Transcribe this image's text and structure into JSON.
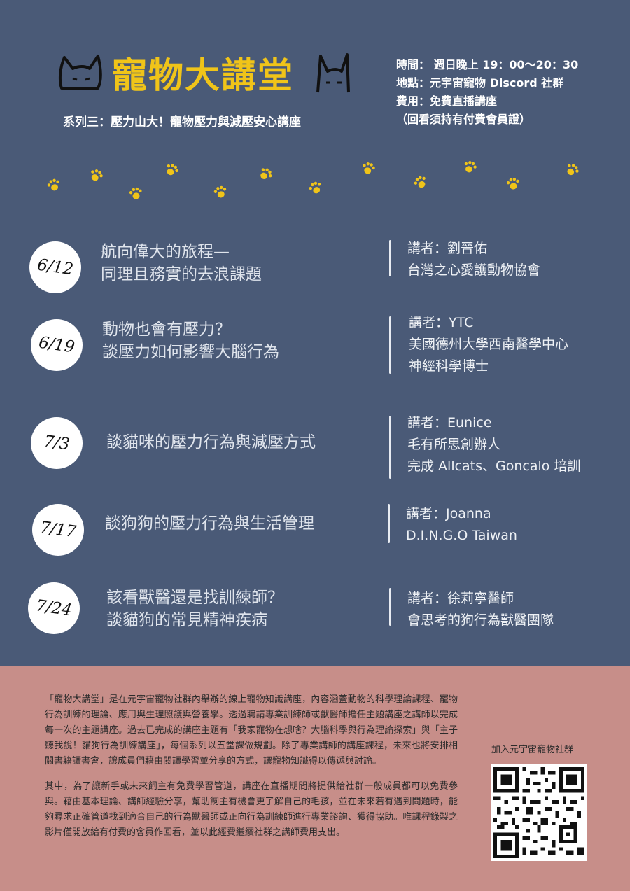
{
  "header": {
    "title": "寵物大講堂",
    "subtitle": "系列三：壓力山大！寵物壓力與減壓安心講座"
  },
  "info": {
    "time": "時間： 週日晚上 19：00～20：30",
    "place": "地點：元宇宙寵物 Discord 社群",
    "fee": "費用：免費直播講座",
    "note": "（回看須持有付費會員證）"
  },
  "sessions": [
    {
      "date": "6/12",
      "topic_lines": [
        "航向偉大的旅程—",
        "同理且務實的去浪課題"
      ],
      "speaker_lines": [
        "講者：劉晉佑",
        "台灣之心愛護動物協會"
      ]
    },
    {
      "date": "6/19",
      "topic_lines": [
        "動物也會有壓力？",
        "談壓力如何影響大腦行為"
      ],
      "speaker_lines": [
        "講者：YTC",
        "美國德州大學西南醫學中心",
        "神經科學博士"
      ]
    },
    {
      "date": "7/3",
      "topic_lines": [
        "談貓咪的壓力行為與減壓方式"
      ],
      "speaker_lines": [
        "講者：Eunice",
        "毛有所思創辦人",
        "完成 Allcats、Goncalo 培訓"
      ]
    },
    {
      "date": "7/17",
      "topic_lines": [
        "談狗狗的壓力行為與生活管理"
      ],
      "speaker_lines": [
        "講者：Joanna",
        "D.I.N.G.O Taiwan"
      ]
    },
    {
      "date": "7/24",
      "topic_lines": [
        "該看獸醫還是找訓練師？",
        "談貓狗的常見精神疾病"
      ],
      "speaker_lines": [
        "講者：徐莉寧醫師",
        "會思考的狗行為獸醫團隊"
      ]
    }
  ],
  "description": {
    "paragraph1": "「寵物大講堂」是在元宇宙寵物社群內舉辦的線上寵物知識講座，內容涵蓋動物的科學理論課程、寵物行為訓練的理論、應用與生理照護與營養學。透過聘請專業訓練師或獸醫師擔任主題講座之講師以完成每一次的主題講座。過去已完成的講座主題有「我家寵物在想啥？大腦科學與行為理論探索」與「主子聽我說！貓狗行為訓練講座」，每個系列以五堂課做規劃。除了專業講師的講座課程，未來也將安排相關書籍讀書會，讓成員們藉由閱讀學習並分享的方式，讓寵物知識得以傳遞與討論。",
    "paragraph2": "其中，為了讓新手或未來飼主有免費學習管道，講座在直播期間將提供給社群一般成員都可以免費參與。藉由基本理論、講師經驗分享，幫助飼主有機會更了解自己的毛孩，並在未來若有遇到問題時，能夠尋求正確管道找到適合自己的行為獸醫師或正向行為訓練師進行專業諮詢、獲得協助。唯課程錄製之影片僅開放給有付費的會員作回看，並以此經費繼續社群之講師費用支出。"
  },
  "qr": {
    "label": "加入元宇宙寵物社群"
  },
  "colors": {
    "background_top": "#4a5a77",
    "background_bottom": "#c78e89",
    "title_yellow": "#f0c419"
  }
}
